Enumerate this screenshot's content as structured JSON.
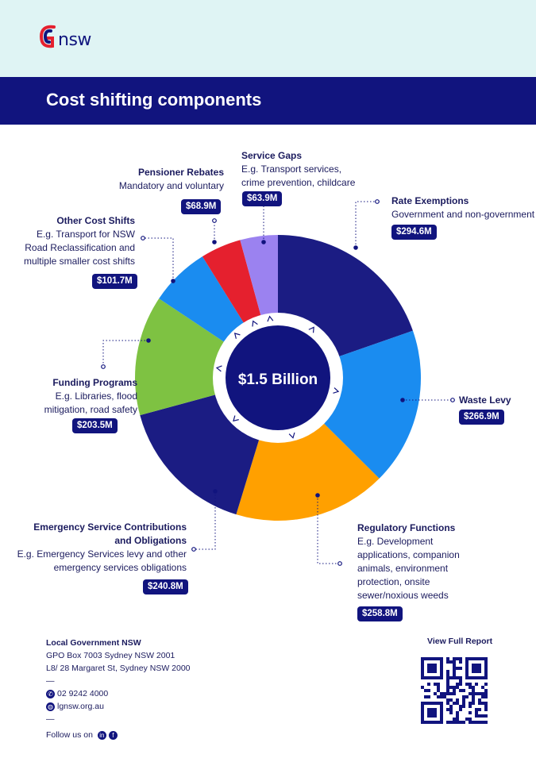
{
  "brand": {
    "logo_text": "nsw",
    "primary": "#11147e",
    "accent": "#e5202e"
  },
  "header": {
    "title": "Cost shifting components"
  },
  "chart_data": {
    "type": "pie",
    "title": "",
    "center_label": "$1.5 Billion",
    "slices": [
      {
        "name": "Rate Exemptions",
        "description": "Government and non-government",
        "value_label": "$294.6M",
        "value": 294.6,
        "color": "#1b1c83"
      },
      {
        "name": "Waste Levy",
        "description": "",
        "value_label": "$266.9M",
        "value": 266.9,
        "color": "#1a8cf0"
      },
      {
        "name": "Regulatory Functions",
        "description": "E.g. Development applications, companion animals, environment protection, onsite sewer/noxious weeds",
        "value_label": "$258.8M",
        "value": 258.8,
        "color": "#ffa000"
      },
      {
        "name": "Emergency Service Contributions and Obligations",
        "description": "E.g. Emergency Services levy and other emergency services obligations",
        "value_label": "$240.8M",
        "value": 240.8,
        "color": "#1b1c83"
      },
      {
        "name": "Funding Programs",
        "description": "E.g. Libraries, flood mitigation, road safety",
        "value_label": "$203.5M",
        "value": 203.5,
        "color": "#7ec242"
      },
      {
        "name": "Other Cost Shifts",
        "description": "E.g. Transport for NSW Road Reclassification and multiple smaller cost shifts",
        "value_label": "$101.7M",
        "value": 101.7,
        "color": "#1a8cf0"
      },
      {
        "name": "Pensioner Rebates",
        "description": "Mandatory and voluntary",
        "value_label": "$68.9M",
        "value": 68.9,
        "color": "#e5202e"
      },
      {
        "name": "Service Gaps",
        "description": "E.g. Transport services, crime prevention, childcare",
        "value_label": "$63.9M",
        "value": 63.9,
        "color": "#9b82f0"
      }
    ]
  },
  "labels": {
    "service_gaps": {
      "title": "Service Gaps",
      "line1": "E.g. Transport services,",
      "line2": "crime prevention, childcare",
      "pill": "$63.9M"
    },
    "pensioner": {
      "title": "Pensioner Rebates",
      "line1": "Mandatory and voluntary",
      "pill": "$68.9M"
    },
    "rate": {
      "title": "Rate Exemptions",
      "line1": "Government and non-government",
      "pill": "$294.6M"
    },
    "other": {
      "title": "Other Cost Shifts",
      "line1": "E.g. Transport for NSW",
      "line2": "Road Reclassification and",
      "line3": "multiple smaller cost shifts",
      "pill": "$101.7M"
    },
    "funding": {
      "title": "Funding Programs",
      "line1": "E.g. Libraries, flood",
      "line2": "mitigation, road safety",
      "pill": "$203.5M"
    },
    "waste": {
      "title": "Waste Levy",
      "pill": "$266.9M"
    },
    "emergency": {
      "title1": "Emergency Service Contributions",
      "title2": "and Obligations",
      "line1": "E.g. Emergency Services levy and other",
      "line2": "emergency services obligations",
      "pill": "$240.8M"
    },
    "regulatory": {
      "title": "Regulatory Functions",
      "line1": "E.g. Development",
      "line2": "applications, companion",
      "line3": "animals, environment",
      "line4": "protection, onsite",
      "line5": "sewer/noxious weeds",
      "pill": "$258.8M"
    }
  },
  "footer": {
    "org": "Local Government NSW",
    "address1": "GPO Box 7003 Sydney NSW 2001",
    "address2": "L8/ 28 Margaret St, Sydney NSW 2000",
    "dash": "—",
    "phone": "02 9242 4000",
    "web": "lgnsw.org.au",
    "follow": "Follow us on",
    "report": "View Full Report"
  }
}
